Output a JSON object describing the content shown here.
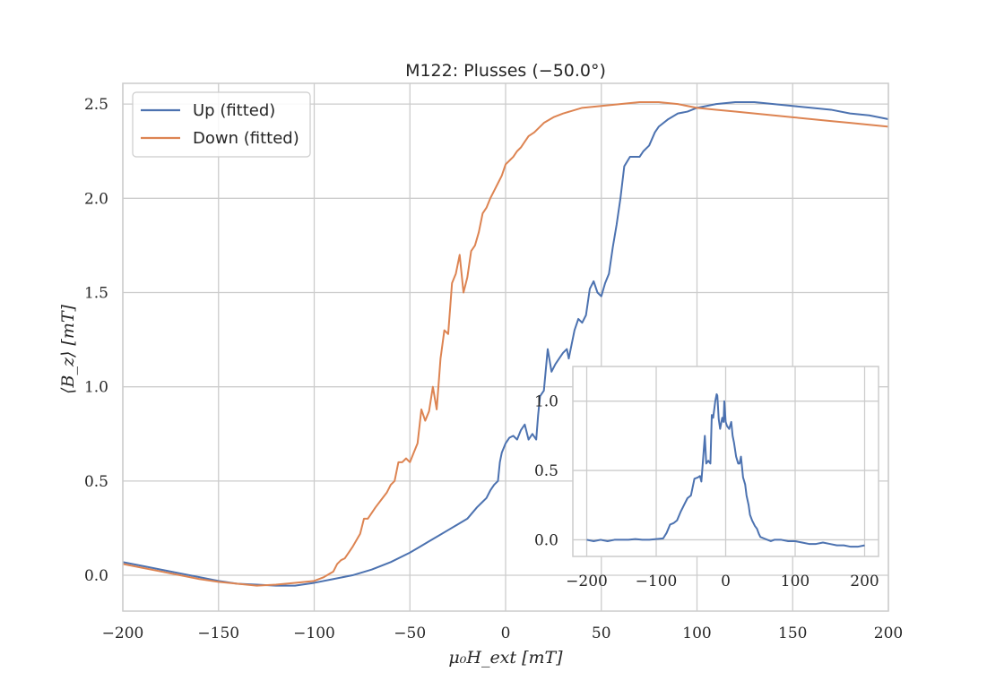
{
  "chart_data": [
    {
      "type": "line",
      "title": "M122: Plusses (−50.0°)",
      "xlabel": "μ₀H_ext [mT]",
      "ylabel": "⟨B_z⟩ [mT]",
      "xlim": [
        -200,
        200
      ],
      "ylim": [
        -0.19,
        2.61
      ],
      "xticks": [
        -200,
        -150,
        -100,
        -50,
        0,
        50,
        100,
        150,
        200
      ],
      "xtick_labels": [
        "−200",
        "−150",
        "−100",
        "−50",
        "0",
        "50",
        "100",
        "150",
        "200"
      ],
      "yticks": [
        0.0,
        0.5,
        1.0,
        1.5,
        2.0,
        2.5
      ],
      "ytick_labels": [
        "0.0",
        "0.5",
        "1.0",
        "1.5",
        "2.0",
        "2.5"
      ],
      "grid": true,
      "legend": "upper-left",
      "series": [
        {
          "name": "Up (fitted)",
          "color": "#4c72b0",
          "x": [
            -200,
            -190,
            -180,
            -170,
            -160,
            -150,
            -140,
            -130,
            -120,
            -110,
            -100,
            -90,
            -80,
            -70,
            -60,
            -50,
            -45,
            -40,
            -35,
            -30,
            -25,
            -20,
            -15,
            -12,
            -10,
            -8,
            -6,
            -4,
            -3,
            -2,
            0,
            2,
            4,
            6,
            8,
            10,
            12,
            14,
            16,
            17,
            18,
            20,
            22,
            24,
            26,
            28,
            30,
            32,
            33,
            34,
            36,
            38,
            40,
            42,
            44,
            46,
            48,
            50,
            52,
            54,
            56,
            58,
            60,
            62,
            65,
            70,
            72,
            75,
            78,
            80,
            85,
            90,
            95,
            100,
            105,
            110,
            120,
            130,
            140,
            150,
            160,
            170,
            180,
            190,
            200
          ],
          "y": [
            0.07,
            0.05,
            0.03,
            0.01,
            -0.01,
            -0.03,
            -0.045,
            -0.05,
            -0.055,
            -0.055,
            -0.04,
            -0.02,
            0.0,
            0.03,
            0.07,
            0.12,
            0.15,
            0.18,
            0.21,
            0.24,
            0.27,
            0.3,
            0.36,
            0.39,
            0.41,
            0.45,
            0.48,
            0.5,
            0.6,
            0.65,
            0.7,
            0.73,
            0.74,
            0.72,
            0.77,
            0.8,
            0.72,
            0.75,
            0.72,
            0.85,
            0.95,
            0.98,
            1.2,
            1.08,
            1.12,
            1.15,
            1.18,
            1.2,
            1.15,
            1.2,
            1.3,
            1.36,
            1.34,
            1.38,
            1.52,
            1.56,
            1.5,
            1.48,
            1.55,
            1.6,
            1.74,
            1.86,
            2.0,
            2.17,
            2.22,
            2.22,
            2.25,
            2.28,
            2.35,
            2.38,
            2.42,
            2.45,
            2.46,
            2.48,
            2.49,
            2.5,
            2.51,
            2.51,
            2.5,
            2.49,
            2.48,
            2.47,
            2.45,
            2.44,
            2.42
          ]
        },
        {
          "name": "Down (fitted)",
          "color": "#dd8452",
          "x": [
            -200,
            -190,
            -180,
            -170,
            -160,
            -150,
            -140,
            -130,
            -120,
            -110,
            -100,
            -95,
            -90,
            -88,
            -86,
            -84,
            -82,
            -80,
            -76,
            -74,
            -72,
            -68,
            -65,
            -62,
            -60,
            -58,
            -56,
            -54,
            -52,
            -50,
            -48,
            -46,
            -44,
            -42,
            -40,
            -38,
            -36,
            -34,
            -32,
            -30,
            -28,
            -26,
            -24,
            -22,
            -20,
            -18,
            -16,
            -14,
            -12,
            -10,
            -8,
            -6,
            -4,
            -2,
            0,
            2,
            4,
            6,
            8,
            10,
            12,
            15,
            20,
            25,
            30,
            40,
            50,
            60,
            70,
            80,
            90,
            100,
            110,
            120,
            130,
            140,
            150,
            160,
            170,
            180,
            190,
            200
          ],
          "y": [
            0.06,
            0.04,
            0.02,
            0.0,
            -0.02,
            -0.035,
            -0.045,
            -0.055,
            -0.05,
            -0.04,
            -0.03,
            -0.01,
            0.02,
            0.06,
            0.08,
            0.09,
            0.12,
            0.15,
            0.22,
            0.3,
            0.3,
            0.36,
            0.4,
            0.44,
            0.48,
            0.5,
            0.6,
            0.6,
            0.62,
            0.6,
            0.65,
            0.7,
            0.88,
            0.82,
            0.87,
            1.0,
            0.88,
            1.15,
            1.3,
            1.28,
            1.55,
            1.6,
            1.7,
            1.5,
            1.58,
            1.72,
            1.75,
            1.82,
            1.92,
            1.95,
            2.0,
            2.04,
            2.08,
            2.12,
            2.18,
            2.2,
            2.22,
            2.25,
            2.27,
            2.3,
            2.33,
            2.35,
            2.4,
            2.43,
            2.45,
            2.48,
            2.49,
            2.5,
            2.51,
            2.51,
            2.5,
            2.48,
            2.47,
            2.46,
            2.45,
            2.44,
            2.43,
            2.42,
            2.41,
            2.4,
            2.39,
            2.38
          ]
        }
      ]
    },
    {
      "type": "line",
      "title": "",
      "xlabel": "",
      "ylabel": "",
      "xlim": [
        -220,
        220
      ],
      "ylim": [
        -0.12,
        1.25
      ],
      "xticks": [
        -200,
        -100,
        0,
        100,
        200
      ],
      "xtick_labels": [
        "−200",
        "−100",
        "0",
        "100",
        "200"
      ],
      "yticks": [
        0.0,
        0.5,
        1.0
      ],
      "ytick_labels": [
        "0.0",
        "0.5",
        "1.0"
      ],
      "grid": true,
      "legend": "none",
      "series": [
        {
          "name": "",
          "color": "#4c72b0",
          "x": [
            -200,
            -190,
            -180,
            -170,
            -160,
            -150,
            -140,
            -130,
            -120,
            -110,
            -100,
            -90,
            -85,
            -80,
            -75,
            -70,
            -65,
            -60,
            -55,
            -50,
            -45,
            -40,
            -37,
            -35,
            -33,
            -30,
            -28,
            -25,
            -22,
            -20,
            -18,
            -15,
            -13,
            -12,
            -10,
            -8,
            -5,
            -3,
            -2,
            0,
            2,
            5,
            8,
            10,
            12,
            15,
            18,
            20,
            22,
            25,
            28,
            30,
            33,
            35,
            38,
            40,
            42,
            45,
            48,
            50,
            55,
            60,
            65,
            70,
            80,
            90,
            100,
            110,
            120,
            130,
            140,
            150,
            160,
            170,
            180,
            190,
            200
          ],
          "y": [
            0.0,
            -0.01,
            0.0,
            -0.01,
            0.0,
            0.0,
            0.0,
            0.005,
            0.0,
            0.0,
            0.005,
            0.01,
            0.05,
            0.11,
            0.12,
            0.14,
            0.2,
            0.25,
            0.3,
            0.32,
            0.44,
            0.45,
            0.46,
            0.42,
            0.55,
            0.75,
            0.55,
            0.57,
            0.55,
            0.9,
            0.88,
            1.0,
            1.05,
            1.04,
            0.87,
            0.8,
            0.88,
            0.85,
            1.0,
            0.85,
            0.82,
            0.8,
            0.85,
            0.75,
            0.7,
            0.6,
            0.55,
            0.55,
            0.6,
            0.45,
            0.4,
            0.32,
            0.25,
            0.18,
            0.14,
            0.12,
            0.1,
            0.08,
            0.04,
            0.02,
            0.01,
            0.0,
            -0.01,
            0.0,
            0.0,
            -0.01,
            -0.01,
            -0.02,
            -0.03,
            -0.03,
            -0.02,
            -0.03,
            -0.04,
            -0.04,
            -0.05,
            -0.05,
            -0.04
          ]
        }
      ]
    }
  ]
}
